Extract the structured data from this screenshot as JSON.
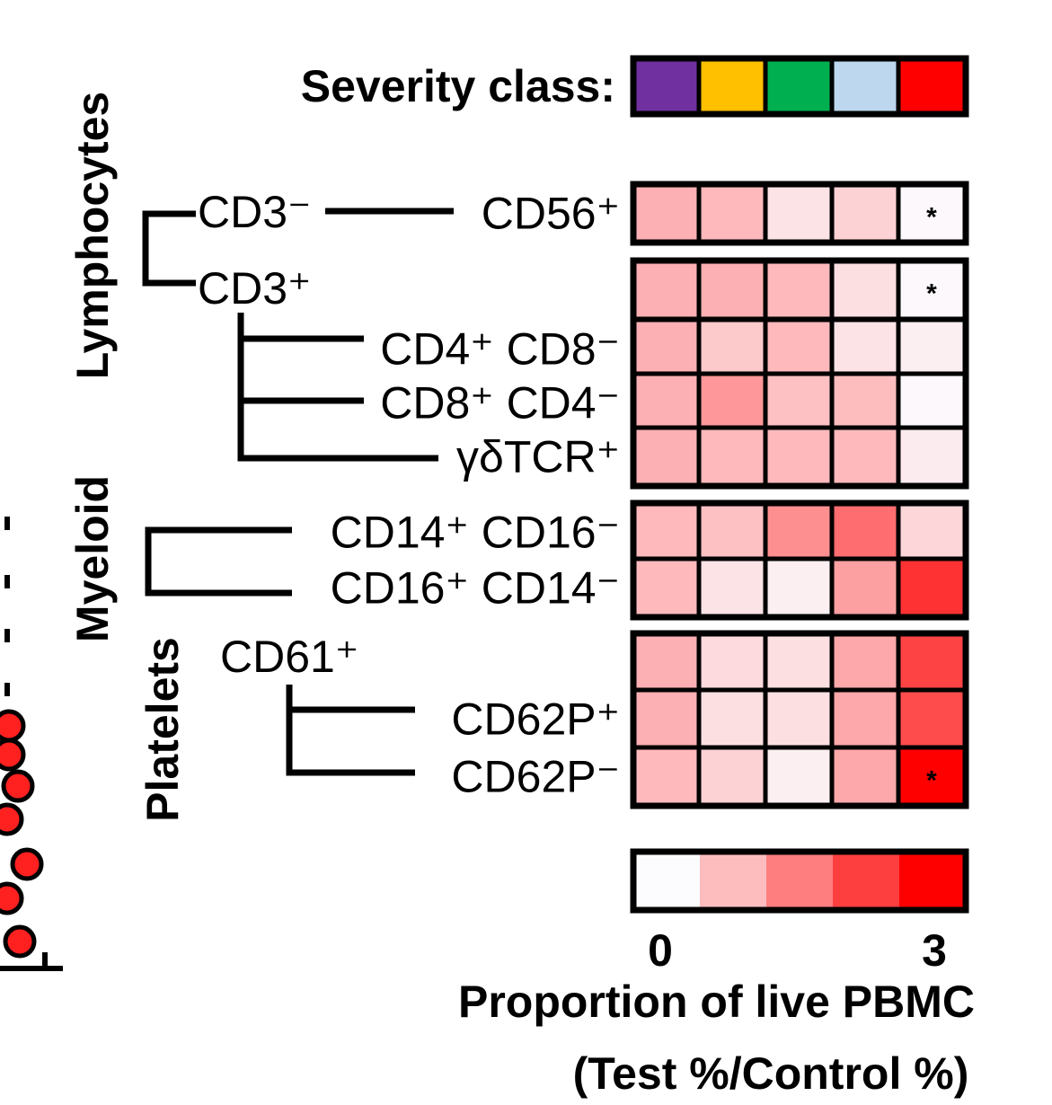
{
  "chart_data": {
    "type": "heatmap",
    "severity_label": "Severity class:",
    "severity_colors": [
      "#7030a0",
      "#ffc000",
      "#00b050",
      "#bdd7ee",
      "#ff0000"
    ],
    "rows": [
      {
        "label": "CD56⁺",
        "values": [
          0.9,
          0.8,
          0.3,
          0.5,
          0.05
        ],
        "stars": [
          false,
          false,
          false,
          false,
          true
        ]
      },
      {
        "label": "CD3⁺",
        "values": [
          0.9,
          0.9,
          0.8,
          0.35,
          0.05
        ],
        "stars": [
          false,
          false,
          false,
          false,
          true
        ]
      },
      {
        "label": "CD4⁺ CD8⁻",
        "values": [
          0.9,
          0.6,
          0.8,
          0.3,
          0.15
        ],
        "stars": [
          false,
          false,
          false,
          false,
          false
        ]
      },
      {
        "label": "CD8⁺ CD4⁻",
        "values": [
          0.9,
          1.2,
          0.7,
          0.75,
          0.05
        ],
        "stars": [
          false,
          false,
          false,
          false,
          false
        ]
      },
      {
        "label": "γδTCR⁺",
        "values": [
          0.9,
          0.8,
          0.8,
          0.8,
          0.2
        ],
        "stars": [
          false,
          false,
          false,
          false,
          false
        ]
      },
      {
        "label": "CD14⁺ CD16⁻",
        "values": [
          0.8,
          0.7,
          1.3,
          1.7,
          0.45
        ],
        "stars": [
          false,
          false,
          false,
          false,
          false
        ]
      },
      {
        "label": "CD16⁺ CD14⁻",
        "values": [
          0.8,
          0.3,
          0.15,
          1.1,
          2.4
        ],
        "stars": [
          false,
          false,
          false,
          false,
          false
        ]
      },
      {
        "label": "CD61⁺",
        "values": [
          0.9,
          0.4,
          0.35,
          1.0,
          2.2
        ],
        "stars": [
          false,
          false,
          false,
          false,
          false
        ]
      },
      {
        "label": "CD62P⁺",
        "values": [
          0.9,
          0.35,
          0.35,
          1.0,
          2.1
        ],
        "stars": [
          false,
          false,
          false,
          false,
          false
        ]
      },
      {
        "label": "CD62P⁻",
        "values": [
          0.8,
          0.5,
          0.15,
          1.0,
          3.0
        ],
        "stars": [
          false,
          false,
          false,
          false,
          true
        ]
      }
    ],
    "tree_labels": {
      "cd3_neg": "CD3⁻",
      "cd3_pos": "CD3⁺"
    },
    "groups": [
      "Lymphocytes",
      "Myeloid",
      "Platelets"
    ],
    "scale": {
      "min": 0,
      "max": 3,
      "min_label": "0",
      "max_label": "3",
      "steps": 5
    },
    "xlabel_line1": "Proportion of live PBMC",
    "xlabel_line2": "(Test %/Control %)",
    "star_symbol": "*"
  }
}
